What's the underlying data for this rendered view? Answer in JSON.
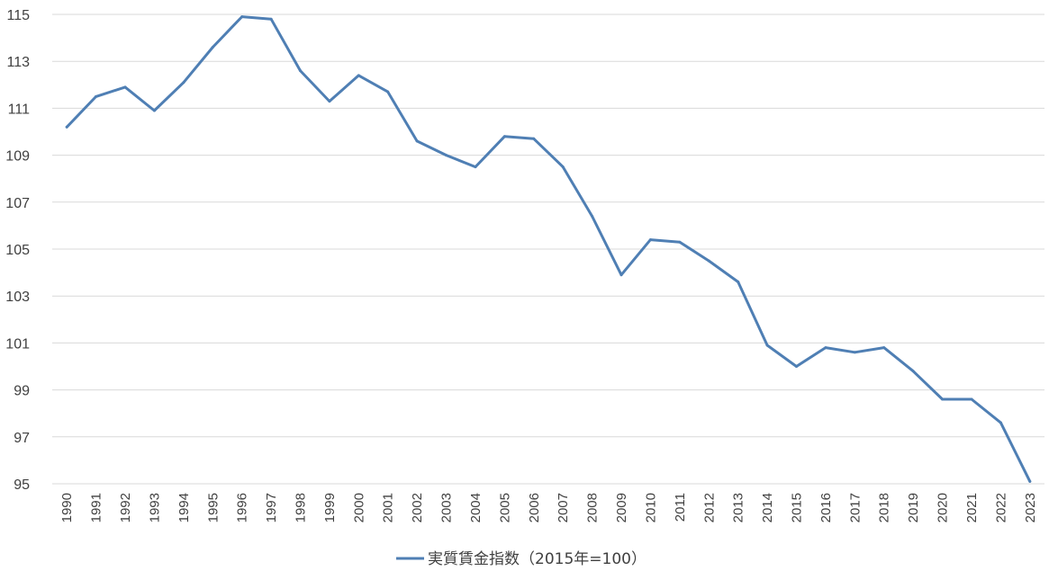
{
  "chart_data": {
    "type": "line",
    "title": "",
    "xlabel": "",
    "ylabel": "",
    "ylim": [
      95,
      115
    ],
    "yticks": [
      95,
      97,
      99,
      101,
      103,
      105,
      107,
      109,
      111,
      113,
      115
    ],
    "grid": "horizontal",
    "legend": "bottom",
    "x": [
      "1990",
      "1991",
      "1992",
      "1993",
      "1994",
      "1995",
      "1996",
      "1997",
      "1998",
      "1999",
      "2000",
      "2001",
      "2002",
      "2003",
      "2004",
      "2005",
      "2006",
      "2007",
      "2008",
      "2009",
      "2010",
      "2011",
      "2012",
      "2013",
      "2014",
      "2015",
      "2016",
      "2017",
      "2018",
      "2019",
      "2020",
      "2021",
      "2022",
      "2023"
    ],
    "series": [
      {
        "name": "実質賃金指数（2015年=100）",
        "color": "#4f7fb4",
        "values": [
          110.2,
          111.5,
          111.9,
          110.9,
          112.1,
          113.6,
          114.9,
          114.8,
          112.6,
          111.3,
          112.4,
          111.7,
          109.6,
          109.0,
          108.5,
          109.8,
          109.7,
          108.5,
          106.4,
          103.9,
          105.4,
          105.3,
          104.5,
          103.6,
          100.9,
          100.0,
          100.8,
          100.6,
          100.8,
          99.8,
          98.6,
          98.6,
          97.6,
          95.1
        ]
      }
    ]
  }
}
